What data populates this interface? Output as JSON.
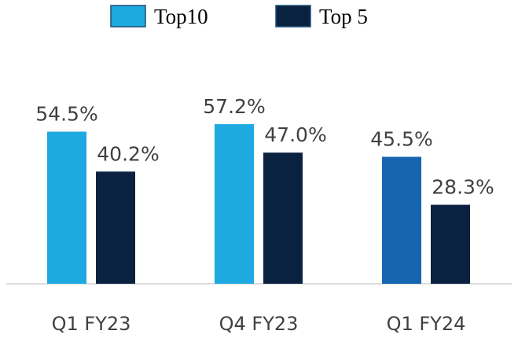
{
  "chart_data": {
    "type": "bar",
    "categories": [
      "Q1 FY23",
      "Q4 FY23",
      "Q1 FY24"
    ],
    "series": [
      {
        "name": "Top10",
        "color": "#1EA9E1",
        "colors": [
          "#1EA9E1",
          "#1EA9E1",
          "#1565B0"
        ],
        "values": [
          54.5,
          57.2,
          45.5
        ],
        "value_labels": [
          "54.5%",
          "57.2%",
          "45.5%"
        ]
      },
      {
        "name": "Top 5",
        "color": "#0A2240",
        "values": [
          40.2,
          47.0,
          28.3
        ],
        "value_labels": [
          "40.2%",
          "47.0%",
          "28.3%"
        ]
      }
    ],
    "legend": "top"
  }
}
